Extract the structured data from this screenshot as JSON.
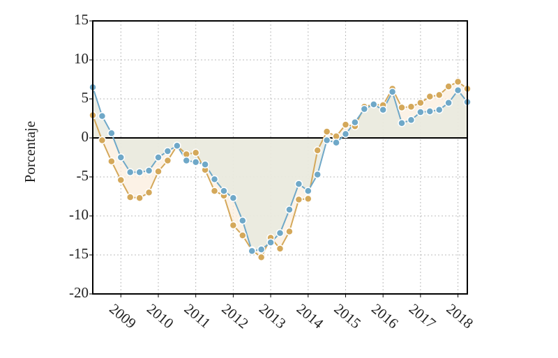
{
  "chart_data": {
    "type": "line",
    "y_label": "Porcentaje",
    "categories": [
      null,
      null,
      null,
      "2009",
      null,
      null,
      null,
      "2010",
      null,
      null,
      null,
      "2011",
      null,
      null,
      null,
      "2012",
      null,
      null,
      null,
      "2013",
      null,
      null,
      null,
      "2014",
      null,
      null,
      null,
      "2015",
      null,
      null,
      null,
      "2016",
      null,
      null,
      null,
      "2017",
      null,
      null,
      null,
      "2018",
      null
    ],
    "series": [
      {
        "color": "#d4a85a",
        "area_color": "#fbeedd",
        "values": [
          2.9,
          -0.3,
          -3.0,
          -5.4,
          -7.6,
          -7.7,
          -7.0,
          -4.3,
          -2.9,
          -1.0,
          -2.1,
          -1.9,
          -4.1,
          -6.8,
          -7.4,
          -11.2,
          -12.5,
          -14.4,
          -15.3,
          -12.8,
          -14.2,
          -12.0,
          -7.9,
          -7.8,
          -1.6,
          0.8,
          0.2,
          1.7,
          1.5,
          4.0,
          4.3,
          4.2,
          6.3,
          3.9,
          4.0,
          4.5,
          5.3,
          5.5,
          6.6,
          7.2,
          6.3
        ]
      },
      {
        "color": "#6fa8c8",
        "area_color": "#e6e8de",
        "values": [
          6.5,
          2.8,
          0.6,
          -2.5,
          -4.4,
          -4.4,
          -4.2,
          -2.5,
          -1.7,
          -1.0,
          -2.9,
          -3.1,
          -3.4,
          -5.3,
          -6.8,
          -7.7,
          -10.6,
          -14.5,
          -14.3,
          -13.4,
          -12.2,
          -9.2,
          -5.9,
          -6.8,
          -4.7,
          -0.3,
          -0.6,
          0.5,
          2.0,
          3.7,
          4.3,
          3.6,
          5.9,
          1.9,
          2.3,
          3.3,
          3.4,
          3.6,
          4.5,
          6.1,
          4.6
        ]
      }
    ],
    "ylim": [
      -20,
      15
    ],
    "yticks": [
      -20,
      -15,
      -10,
      -5,
      0,
      5,
      10,
      15
    ],
    "grid": true,
    "zero_line": true
  }
}
